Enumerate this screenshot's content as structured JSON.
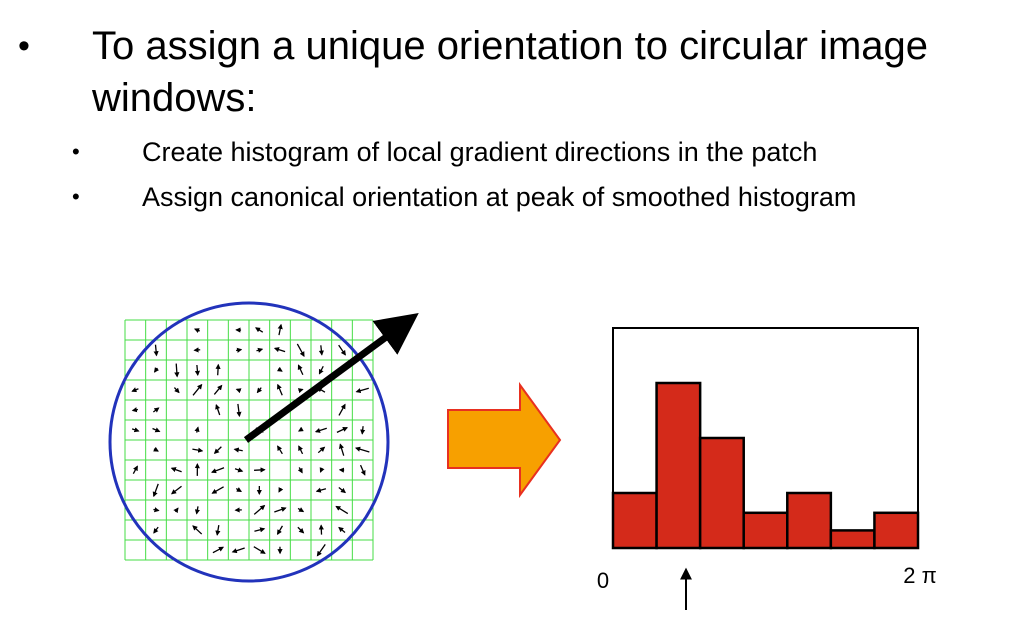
{
  "bullets": {
    "main": "To assign a unique orientation to circular image windows:",
    "sub": [
      "Create histogram of local gradient directions in the patch",
      "Assign canonical orientation at peak of smoothed histogram"
    ]
  },
  "histogram": {
    "values": [
      25,
      75,
      50,
      16,
      25,
      8,
      16
    ],
    "ylim": [
      0,
      100
    ],
    "color": "#d42a1a",
    "start_label": "0",
    "end_label": "2 π"
  }
}
